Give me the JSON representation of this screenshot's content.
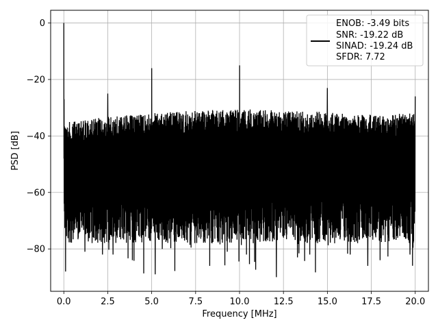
{
  "chart_data": {
    "type": "line",
    "title": "",
    "xlabel": "Frequency [MHz]",
    "ylabel": "PSD [dB]",
    "xlim": [
      -0.75,
      20.75
    ],
    "ylim": [
      -95,
      4.5
    ],
    "x_ticks": [
      0.0,
      2.5,
      5.0,
      7.5,
      10.0,
      12.5,
      15.0,
      17.5,
      20.0
    ],
    "x_tick_labels": [
      "0.0",
      "2.5",
      "5.0",
      "7.5",
      "10.0",
      "12.5",
      "15.0",
      "17.5",
      "20.0"
    ],
    "y_ticks": [
      0,
      -20,
      -40,
      -60,
      -80
    ],
    "y_tick_labels": [
      "0",
      "−20",
      "−40",
      "−60",
      "−80"
    ],
    "grid": true,
    "legend_position": "top-right",
    "series": [
      {
        "name": "",
        "color": "#000000",
        "noise_ceiling": {
          "x": [
            0,
            0.5,
            2,
            5,
            7.5,
            10,
            12.5,
            15,
            17.5,
            20
          ],
          "y": [
            -32,
            -32,
            -30.5,
            -29,
            -28,
            -27.5,
            -28,
            -28.5,
            -29.5,
            -29
          ]
        },
        "noise_floor_typical": -70,
        "spurs": [
          {
            "x": 0.0,
            "y": 0.0
          },
          {
            "x": 2.5,
            "y": -25
          },
          {
            "x": 5.0,
            "y": -16
          },
          {
            "x": 10.0,
            "y": -15
          },
          {
            "x": 15.0,
            "y": -23
          },
          {
            "x": 20.0,
            "y": -26
          }
        ],
        "deep_nulls": [
          {
            "x": 0.1,
            "y": -88
          },
          {
            "x": 1.2,
            "y": -81
          },
          {
            "x": 2.2,
            "y": -82
          },
          {
            "x": 2.8,
            "y": -82
          },
          {
            "x": 3.9,
            "y": -84
          },
          {
            "x": 5.2,
            "y": -89
          },
          {
            "x": 5.6,
            "y": -80
          },
          {
            "x": 8.3,
            "y": -86
          },
          {
            "x": 9.3,
            "y": -81
          },
          {
            "x": 10.4,
            "y": -82
          },
          {
            "x": 12.1,
            "y": -90
          },
          {
            "x": 13.3,
            "y": -83
          },
          {
            "x": 14.0,
            "y": -82
          },
          {
            "x": 16.3,
            "y": -82
          },
          {
            "x": 17.3,
            "y": -86
          },
          {
            "x": 18.0,
            "y": -84
          },
          {
            "x": 19.7,
            "y": -82
          }
        ]
      }
    ]
  },
  "legend": {
    "line1": "ENOB: -3.49 bits",
    "line2": "SNR: -19.22 dB",
    "line3": "SINAD: -19.24 dB",
    "line4": "SFDR: 7.72"
  }
}
